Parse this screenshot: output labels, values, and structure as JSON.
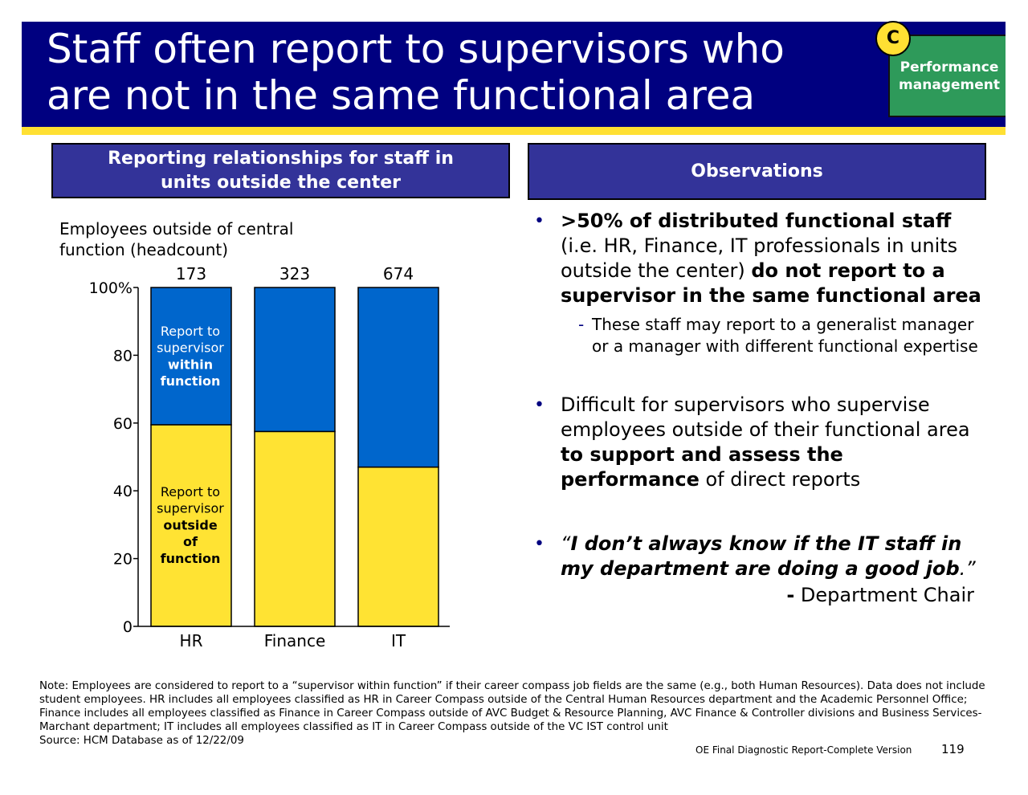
{
  "header": {
    "title": "Staff often report to supervisors who are not in the same functional area",
    "module_letter": "C",
    "module_label_line1": "Performance",
    "module_label_line2": "management"
  },
  "left_panel": {
    "header_line1": "Reporting relationships for staff in",
    "header_line2": "units outside the center"
  },
  "chart_data": {
    "type": "bar",
    "stacked": true,
    "ylabel_line1": "Employees outside of central",
    "ylabel_line2": "function (headcount)",
    "categories": [
      "HR",
      "Finance",
      "IT"
    ],
    "headcounts": [
      "173",
      "323",
      "674"
    ],
    "ylim": [
      0,
      100
    ],
    "yticks": [
      "0",
      "20",
      "40",
      "60",
      "80",
      "100%"
    ],
    "series": [
      {
        "name": "Report to supervisor outside of function",
        "values": [
          59.5,
          57.5,
          47
        ],
        "color": "#ffe333",
        "label_lines": [
          "Report to",
          "supervisor",
          "outside",
          "of",
          "function"
        ]
      },
      {
        "name": "Report to supervisor within function",
        "values": [
          40.5,
          42.5,
          53
        ],
        "color": "#0066cc",
        "label_lines": [
          "Report to",
          "supervisor",
          "within",
          "function"
        ]
      }
    ]
  },
  "observations": {
    "header": "Observations",
    "b1_bold_a": ">50% of distributed functional staff",
    "b1_text_a": " (i.e. HR, Finance, IT professionals in units outside the center) ",
    "b1_bold_b": "do not report to a supervisor in the same functional area",
    "b1_sub_dash": "-",
    "b1_sub": "These staff may report to a generalist manager or a manager with different functional expertise",
    "b2_text_a": "Difficult for supervisors who supervise employees outside of their functional area ",
    "b2_bold": "to support and assess the performance",
    "b2_text_b": " of direct reports",
    "b3_quote_open": "“",
    "b3_quote": "I don’t always know if the IT staff in my department are doing a good job",
    "b3_quote_close": ".”",
    "b3_attrib_dash": "-",
    "b3_attrib": " Department Chair",
    "bullet_glyph": "•"
  },
  "footer": {
    "note": "Note: Employees are considered to report to a “supervisor within function” if their career compass job fields are the same (e.g., both Human Resources). Data does not include student employees. HR includes all employees classified as HR in Career Compass outside of the Central Human Resources department and the Academic Personnel Office; Finance includes all employees classified as Finance in Career Compass outside of AVC Budget & Resource Planning, AVC Finance & Controller divisions and Business Services-Marchant department; IT includes all employees classified as IT in Career Compass outside of the VC IST control unit",
    "source": "Source: HCM Database as of 12/22/09",
    "doc_name": "OE Final Diagnostic Report-Complete Version",
    "page_number": "119"
  }
}
